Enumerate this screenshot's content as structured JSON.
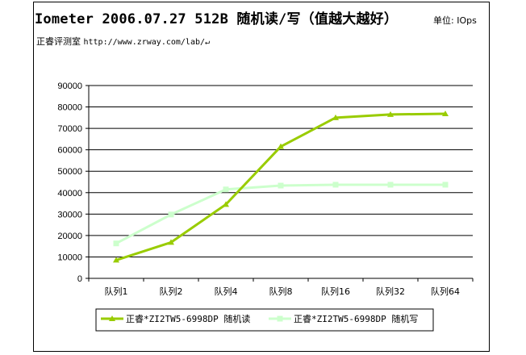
{
  "header": {
    "title": "Iometer 2006.07.27 512B 随机读/写（值越大越好）",
    "unit": "单位: IOps",
    "site_name": "正睿评测室",
    "site_url": "http://www.zrway.com/lab/↵"
  },
  "chart_data": {
    "type": "line",
    "categories": [
      "队列1",
      "队列2",
      "队列4",
      "队列8",
      "队列16",
      "队列32",
      "队列64"
    ],
    "series": [
      {
        "name": "正睿*ZI2TW5-6998DP 随机读",
        "values": [
          8500,
          16800,
          34500,
          61500,
          75000,
          76500,
          76800
        ],
        "color": "#99cc00",
        "marker": "triangle"
      },
      {
        "name": "正睿*ZI2TW5-6998DP 随机写",
        "values": [
          16300,
          29800,
          41500,
          43300,
          43700,
          43700,
          43700
        ],
        "color": "#ccffcc",
        "marker": "square"
      }
    ],
    "ylim": [
      0,
      90000
    ],
    "yticks": [
      0,
      10000,
      20000,
      30000,
      40000,
      50000,
      60000,
      70000,
      80000,
      90000
    ],
    "grid": true,
    "legend": "bottom"
  }
}
